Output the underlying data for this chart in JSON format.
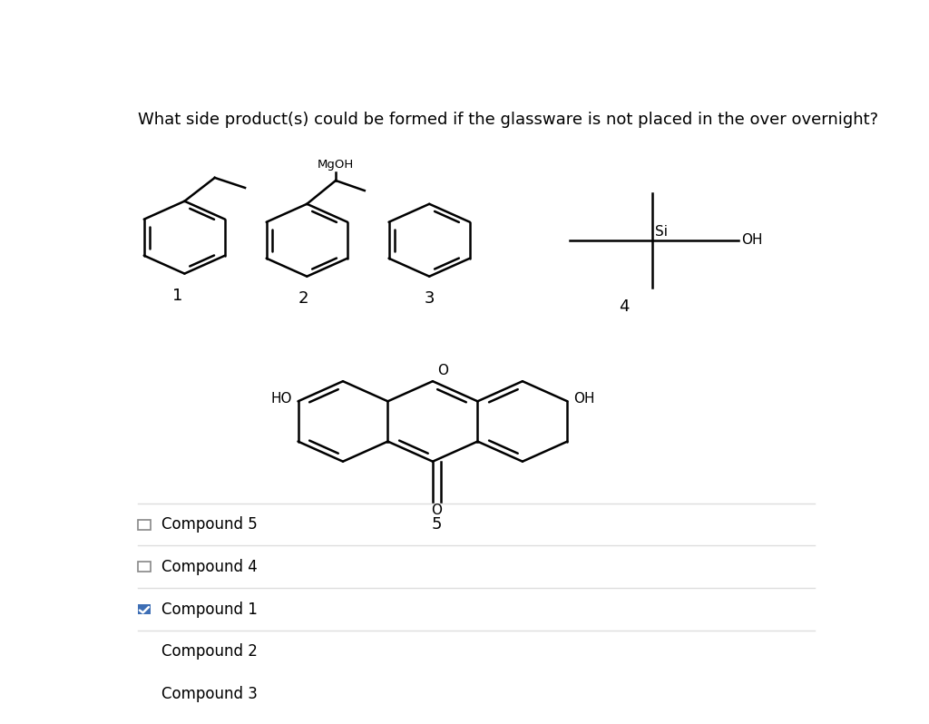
{
  "title": "What side product(s) could be formed if the glassware is not placed in the over overnight?",
  "bg_color": "#ffffff",
  "text_color": "#000000",
  "title_fontsize": 13,
  "label_fontsize": 12,
  "checkbox_items": [
    {
      "label": "Compound 5",
      "checked": false
    },
    {
      "label": "Compound 4",
      "checked": false
    },
    {
      "label": "Compound 1",
      "checked": true
    },
    {
      "label": "Compound 2",
      "checked": false
    },
    {
      "label": "Compound 3",
      "checked": true
    }
  ],
  "checkbox_color_checked": "#3d6eb5",
  "checkbox_color_unchecked": "#ffffff",
  "checkbox_border_color": "#888888",
  "divider_color": "#dddddd",
  "compound_labels": [
    "1",
    "2",
    "3",
    "4",
    "5"
  ]
}
